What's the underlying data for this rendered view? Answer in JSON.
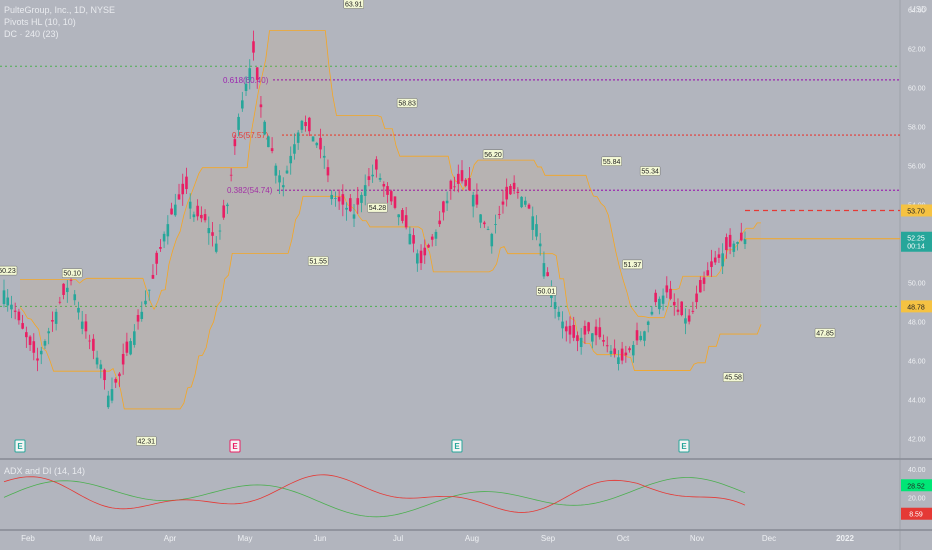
{
  "header": {
    "title": "PulteGroup, Inc., 1D, NYSE",
    "pivots_label": "Pivots HL (10, 10)",
    "dc_label": "DC · 240 (23)",
    "currency": "USD"
  },
  "adx_label": "ADX and DI (14, 14)",
  "colors": {
    "background": "#b2b5be",
    "up": "#26a69a",
    "down": "#e91e63",
    "channel": "#f5a623",
    "fib_purple": "#9c27b0",
    "fib_red": "#e53935",
    "green_level": "#4caf50",
    "adx_green": "#4caf50",
    "adx_red": "#e53935"
  },
  "chart_data": {
    "type": "candlestick",
    "title": "PulteGroup, Inc., 1D, NYSE",
    "y_axis": {
      "min": 41,
      "max": 64.5,
      "ticks": [
        "42.00",
        "44.00",
        "46.00",
        "48.00",
        "50.00",
        "52.00",
        "54.00",
        "56.00",
        "58.00",
        "60.00",
        "62.00",
        "64.00"
      ]
    },
    "x_axis": {
      "ticks": [
        "Feb",
        "Mar",
        "Apr",
        "May",
        "Jun",
        "Jul",
        "Aug",
        "Sep",
        "Oct",
        "Nov",
        "Dec",
        "2022"
      ]
    },
    "close_path": [
      [
        0,
        49.6
      ],
      [
        3,
        48.5
      ],
      [
        6,
        47.2
      ],
      [
        9,
        46.0
      ],
      [
        12,
        47.5
      ],
      [
        15,
        49.0
      ],
      [
        18,
        50.1
      ],
      [
        21,
        48.0
      ],
      [
        24,
        46.5
      ],
      [
        26,
        45.8
      ],
      [
        28,
        44.2
      ],
      [
        31,
        45.2
      ],
      [
        34,
        47.0
      ],
      [
        37,
        48.5
      ],
      [
        40,
        50.2
      ],
      [
        43,
        52.5
      ],
      [
        46,
        54.0
      ],
      [
        49,
        54.8
      ],
      [
        51,
        53.5
      ],
      [
        54,
        53.2
      ],
      [
        57,
        52.0
      ],
      [
        60,
        54.0
      ],
      [
        63,
        58.5
      ],
      [
        65,
        60.2
      ],
      [
        67,
        61.8
      ],
      [
        69,
        59.0
      ],
      [
        71,
        57.5
      ],
      [
        73,
        56.0
      ],
      [
        75,
        55.0
      ],
      [
        77,
        56.5
      ],
      [
        80,
        58.3
      ],
      [
        83,
        57.5
      ],
      [
        86,
        56.5
      ],
      [
        88,
        54.5
      ],
      [
        91,
        54.0
      ],
      [
        94,
        53.5
      ],
      [
        97,
        55.0
      ],
      [
        100,
        55.8
      ],
      [
        103,
        54.5
      ],
      [
        106,
        53.5
      ],
      [
        109,
        52.5
      ],
      [
        112,
        51.0
      ],
      [
        114,
        51.8
      ],
      [
        117,
        53.0
      ],
      [
        120,
        54.8
      ],
      [
        123,
        55.2
      ],
      [
        126,
        54.5
      ],
      [
        129,
        53.0
      ],
      [
        131,
        52.5
      ],
      [
        134,
        54.0
      ],
      [
        137,
        54.8
      ],
      [
        140,
        54.2
      ],
      [
        143,
        53.0
      ],
      [
        145,
        51.0
      ],
      [
        148,
        49.0
      ],
      [
        151,
        47.5
      ],
      [
        154,
        47.0
      ],
      [
        157,
        47.5
      ],
      [
        160,
        47.2
      ],
      [
        163,
        46.5
      ],
      [
        166,
        46.0
      ],
      [
        169,
        46.8
      ],
      [
        172,
        47.5
      ],
      [
        175,
        49.0
      ],
      [
        178,
        49.5
      ],
      [
        181,
        48.5
      ],
      [
        184,
        48.0
      ],
      [
        187,
        49.5
      ],
      [
        190,
        50.8
      ],
      [
        193,
        51.5
      ],
      [
        196,
        52.0
      ],
      [
        199,
        52.25
      ]
    ],
    "pivots": [
      {
        "label": "50.23",
        "day": 1,
        "price": 50.23,
        "pos": "high"
      },
      {
        "label": "50.10",
        "day": 23,
        "price": 50.1,
        "pos": "high"
      },
      {
        "label": "42.31",
        "day": 48,
        "price": 42.31,
        "pos": "low"
      },
      {
        "label": "51.55",
        "day": 106,
        "price": 51.55,
        "pos": "low"
      },
      {
        "label": "63.91",
        "day": 118,
        "price": 63.91,
        "pos": "high"
      },
      {
        "label": "54.28",
        "day": 126,
        "price": 54.28,
        "pos": "low"
      },
      {
        "label": "58.83",
        "day": 136,
        "price": 58.83,
        "pos": "high"
      },
      {
        "label": "56.20",
        "day": 165,
        "price": 56.2,
        "pos": "high"
      },
      {
        "label": "50.01",
        "day": 183,
        "price": 50.01,
        "pos": "low"
      },
      {
        "label": "55.84",
        "day": 205,
        "price": 55.84,
        "pos": "high"
      },
      {
        "label": "51.37",
        "day": 212,
        "price": 51.37,
        "pos": "low"
      },
      {
        "label": "55.34",
        "day": 218,
        "price": 55.34,
        "pos": "high"
      },
      {
        "label": "45.58",
        "day": 246,
        "price": 45.58,
        "pos": "low"
      },
      {
        "label": "47.85",
        "day": 277,
        "price": 47.85,
        "pos": "low"
      }
    ],
    "fib_levels": [
      {
        "label": "0.618(60.40)",
        "price": 60.4,
        "color": "purple"
      },
      {
        "label": "0.5(57.57)",
        "price": 57.57,
        "color": "red"
      },
      {
        "label": "0.382(54.74)",
        "price": 54.74,
        "color": "purple"
      }
    ],
    "green_levels": [
      61.1,
      48.78
    ],
    "price_tags": [
      {
        "label": "53.70",
        "price": 53.7,
        "type": "pivot"
      },
      {
        "label": "52.25",
        "sub": "00:14",
        "price": 52.25,
        "type": "last"
      },
      {
        "label": "48.78",
        "price": 48.78,
        "type": "level"
      }
    ],
    "earnings_markers": [
      "E",
      "E",
      "E",
      "E"
    ],
    "adx": {
      "axis_ticks": [
        "40.00",
        "20.00"
      ],
      "values": {
        "plus_di": "28.52",
        "minus_di": "8.59"
      }
    }
  }
}
